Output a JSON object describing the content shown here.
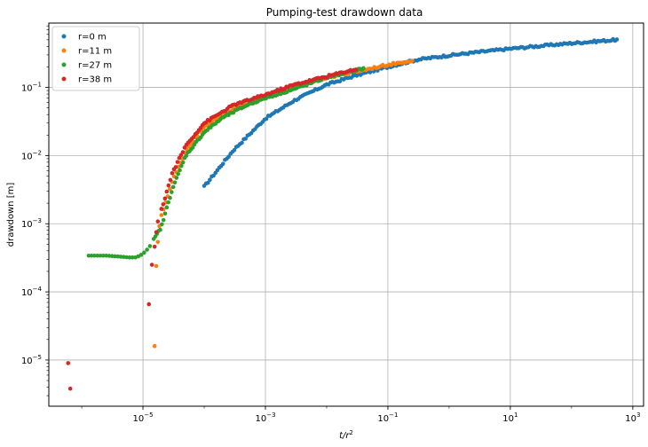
{
  "chart_data": {
    "type": "scatter",
    "title": "Pumping-test drawdown data",
    "xlabel": "t/r^2",
    "ylabel": "drawdown [m]",
    "xscale": "log",
    "yscale": "log",
    "xlim": [
      2.9e-07,
      1500
    ],
    "ylim": [
      2.1e-06,
      0.88
    ],
    "grid": true,
    "legend_position": "upper left",
    "x_ticks": [
      {
        "value": 1e-05,
        "base": "10",
        "exp": "−5"
      },
      {
        "value": 0.001,
        "base": "10",
        "exp": "−3"
      },
      {
        "value": 0.1,
        "base": "10",
        "exp": "−1"
      },
      {
        "value": 10,
        "base": "10",
        "exp": "1"
      },
      {
        "value": 1000,
        "base": "10",
        "exp": "3"
      }
    ],
    "y_ticks": [
      {
        "value": 1e-05,
        "base": "10",
        "exp": "−5"
      },
      {
        "value": 0.0001,
        "base": "10",
        "exp": "−4"
      },
      {
        "value": 0.001,
        "base": "10",
        "exp": "−3"
      },
      {
        "value": 0.01,
        "base": "10",
        "exp": "−2"
      },
      {
        "value": 0.1,
        "base": "10",
        "exp": "−1"
      }
    ],
    "series": [
      {
        "name": "r=0 m",
        "color": "#1f77b4",
        "x_range": [
          0.0001,
          550
        ],
        "count": 220,
        "curve": [
          [
            0.0001,
            0.0035
          ],
          [
            0.0003,
            0.012
          ],
          [
            0.001,
            0.035
          ],
          [
            0.003,
            0.065
          ],
          [
            0.01,
            0.11
          ],
          [
            0.03,
            0.15
          ],
          [
            0.1,
            0.2
          ],
          [
            0.3,
            0.255
          ],
          [
            1,
            0.295
          ],
          [
            3,
            0.33
          ],
          [
            10,
            0.37
          ],
          [
            30,
            0.405
          ],
          [
            100,
            0.445
          ],
          [
            300,
            0.48
          ],
          [
            550,
            0.5
          ]
        ]
      },
      {
        "name": "r=11 m",
        "color": "#ff7f0e",
        "x_range": [
          1.55e-05,
          0.25
        ],
        "count": 120,
        "points_early": [
          [
            1.55e-05,
            1.6e-05
          ],
          [
            1.65e-05,
            0.00024
          ],
          [
            1.75e-05,
            0.00054
          ],
          [
            1.85e-05,
            0.00092
          ]
        ],
        "curve": [
          [
            2e-05,
            0.0013
          ],
          [
            3e-05,
            0.0042
          ],
          [
            5e-05,
            0.012
          ],
          [
            0.0001,
            0.027
          ],
          [
            0.0003,
            0.048
          ],
          [
            0.001,
            0.072
          ],
          [
            0.003,
            0.1
          ],
          [
            0.01,
            0.14
          ],
          [
            0.03,
            0.17
          ],
          [
            0.1,
            0.215
          ],
          [
            0.25,
            0.25
          ]
        ]
      },
      {
        "name": "r=27 m",
        "color": "#2ca02c",
        "x_range": [
          1.3e-06,
          0.04
        ],
        "count": 130,
        "plateau": [
          [
            1.3e-06,
            0.00034
          ],
          [
            2.5e-06,
            0.00034
          ],
          [
            4e-06,
            0.00033
          ],
          [
            6e-06,
            0.00032
          ],
          [
            7.5e-06,
            0.00032
          ],
          [
            9e-06,
            0.00034
          ],
          [
            1.1e-05,
            0.00039
          ],
          [
            1.3e-05,
            0.00047
          ]
        ],
        "curve": [
          [
            1.5e-05,
            0.00058
          ],
          [
            2e-05,
            0.0009
          ],
          [
            3e-05,
            0.0032
          ],
          [
            5e-05,
            0.01
          ],
          [
            0.0001,
            0.022
          ],
          [
            0.0002,
            0.036
          ],
          [
            0.0005,
            0.055
          ],
          [
            0.001,
            0.07
          ],
          [
            0.003,
            0.095
          ],
          [
            0.01,
            0.14
          ],
          [
            0.04,
            0.19
          ]
        ]
      },
      {
        "name": "r=38 m",
        "color": "#d62728",
        "x_range": [
          6e-07,
          0.03
        ],
        "count": 110,
        "points_early": [
          [
            6e-07,
            9e-06
          ],
          [
            6.5e-07,
            3.8e-06
          ],
          [
            1.25e-05,
            6.6e-05
          ],
          [
            1.4e-05,
            0.00025
          ],
          [
            1.55e-05,
            0.00046
          ],
          [
            1.65e-05,
            0.00075
          ],
          [
            1.75e-05,
            0.00108
          ]
        ],
        "curve": [
          [
            2e-05,
            0.0016
          ],
          [
            3e-05,
            0.0055
          ],
          [
            5e-05,
            0.014
          ],
          [
            0.0001,
            0.03
          ],
          [
            0.0003,
            0.055
          ],
          [
            0.001,
            0.078
          ],
          [
            0.003,
            0.11
          ],
          [
            0.01,
            0.145
          ],
          [
            0.03,
            0.185
          ]
        ]
      }
    ]
  }
}
